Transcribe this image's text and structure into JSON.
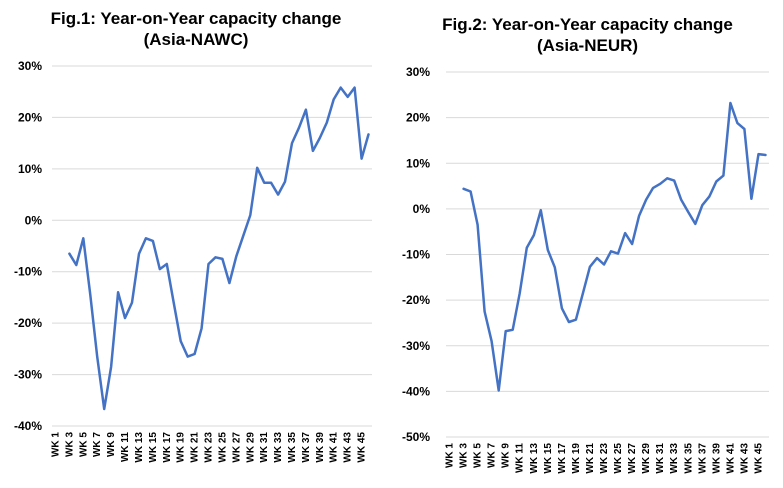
{
  "chart_data": [
    {
      "type": "line",
      "title": "Fig.1: Year-on-Year capacity change (Asia-NAWC)",
      "title_lines": [
        "Fig.1: Year-on-Year capacity change",
        "(Asia-NAWC)"
      ],
      "categories": [
        "WK 1",
        "WK 3",
        "WK 5",
        "WK 7",
        "WK 9",
        "WK 11",
        "WK 13",
        "WK 15",
        "WK 17",
        "WK 19",
        "WK 21",
        "WK 23",
        "WK 25",
        "WK 27",
        "WK 29",
        "WK 31",
        "WK 33",
        "WK 35",
        "WK 37",
        "WK 39",
        "WK 41",
        "WK 43",
        "WK 45"
      ],
      "x": [
        1,
        2,
        3,
        4,
        5,
        6,
        7,
        8,
        9,
        10,
        11,
        12,
        13,
        14,
        15,
        16,
        17,
        18,
        19,
        20,
        21,
        22,
        23,
        24,
        25,
        26,
        27,
        28,
        29,
        30,
        31,
        32,
        33,
        34,
        35,
        36,
        37,
        38,
        39,
        40,
        41,
        42,
        43,
        44,
        45,
        46
      ],
      "ylim": [
        -40,
        30
      ],
      "yticks": [
        -40,
        -30,
        -20,
        -10,
        0,
        10,
        20,
        30
      ],
      "ytick_labels": [
        "-40%",
        "-30%",
        "-20%",
        "-10%",
        "0%",
        "10%",
        "20%",
        "30%"
      ],
      "grid": true,
      "color": "#4472c4",
      "series": [
        {
          "values": [
            null,
            null,
            -6.5,
            -8.7,
            -3.5,
            -14.5,
            -26.5,
            -36.7,
            -28.5,
            -14.0,
            -19.0,
            -16.0,
            -6.5,
            -3.5,
            -4.0,
            -9.5,
            -8.5,
            -16.0,
            -23.5,
            -26.5,
            -26.0,
            -21.0,
            -8.5,
            -7.2,
            -7.5,
            -12.2,
            -7.0,
            -3.0,
            1.0,
            10.2,
            7.3,
            7.3,
            5.0,
            7.5,
            15.0,
            18.0,
            21.5,
            13.5,
            16.0,
            19.0,
            23.5,
            25.8,
            24.0,
            25.8,
            12.0,
            16.7
          ]
        }
      ]
    },
    {
      "type": "line",
      "title": "Fig.2: Year-on-Year capacity change (Asia-NEUR)",
      "title_lines": [
        "Fig.2: Year-on-Year capacity change",
        "(Asia-NEUR)"
      ],
      "categories": [
        "WK 1",
        "WK 3",
        "WK 5",
        "WK 7",
        "WK 9",
        "WK 11",
        "WK 13",
        "WK 15",
        "WK 17",
        "WK 19",
        "WK 21",
        "WK 23",
        "WK 25",
        "WK 27",
        "WK 29",
        "WK 31",
        "WK 33",
        "WK 35",
        "WK 37",
        "WK 39",
        "WK 41",
        "WK 43",
        "WK 45"
      ],
      "x": [
        1,
        2,
        3,
        4,
        5,
        6,
        7,
        8,
        9,
        10,
        11,
        12,
        13,
        14,
        15,
        16,
        17,
        18,
        19,
        20,
        21,
        22,
        23,
        24,
        25,
        26,
        27,
        28,
        29,
        30,
        31,
        32,
        33,
        34,
        35,
        36,
        37,
        38,
        39,
        40,
        41,
        42,
        43,
        44,
        45,
        46
      ],
      "ylim": [
        -50,
        30
      ],
      "yticks": [
        -50,
        -40,
        -30,
        -20,
        -10,
        0,
        10,
        20,
        30
      ],
      "ytick_labels": [
        "-50%",
        "-40%",
        "-30%",
        "-20%",
        "-10%",
        "0%",
        "10%",
        "20%",
        "30%"
      ],
      "grid": true,
      "color": "#4472c4",
      "series": [
        {
          "values": [
            null,
            null,
            4.4,
            3.8,
            -3.5,
            -22.5,
            -29.0,
            -39.8,
            -26.8,
            -26.5,
            -18.5,
            -8.5,
            -5.8,
            -0.3,
            -9.0,
            -12.8,
            -21.8,
            -24.8,
            -24.3,
            -18.5,
            -12.7,
            -10.8,
            -12.2,
            -9.3,
            -9.8,
            -5.3,
            -7.7,
            -1.5,
            2.0,
            4.6,
            5.5,
            6.7,
            6.2,
            2.0,
            -0.7,
            -3.3,
            0.8,
            2.7,
            6.0,
            7.3,
            23.2,
            18.8,
            17.5,
            2.2,
            12.0,
            11.8
          ]
        }
      ]
    }
  ]
}
